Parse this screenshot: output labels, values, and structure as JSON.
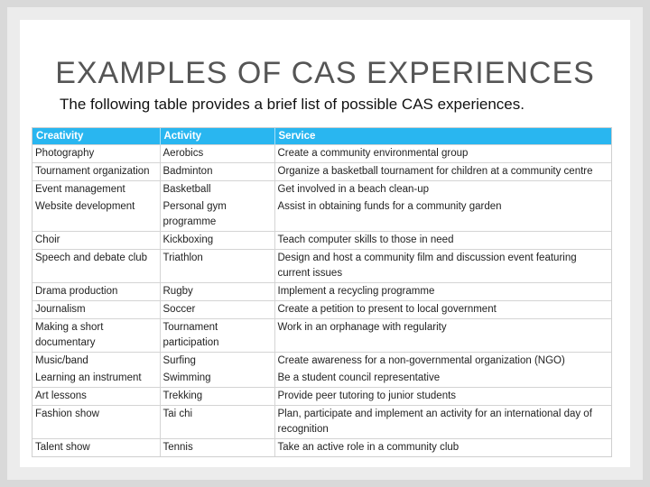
{
  "slide": {
    "title": "EXAMPLES OF CAS EXPERIENCES",
    "subtitle": "The following table provides a brief list of possible CAS experiences."
  },
  "table": {
    "headers": [
      "Creativity",
      "Activity",
      "Service"
    ],
    "rows": [
      {
        "cells": [
          "Photography",
          "Aerobics",
          "Create a community environmental group"
        ],
        "line": true
      },
      {
        "cells": [
          "Tournament organization",
          "Badminton",
          "Organize a basketball tournament for children at a community centre"
        ],
        "line": true
      },
      {
        "cells": [
          "Event management",
          "Basketball",
          "Get involved in a beach clean-up"
        ],
        "line": true
      },
      {
        "cells": [
          "Website development",
          "Personal gym programme",
          "Assist in obtaining funds for a community garden"
        ],
        "line": false
      },
      {
        "cells": [
          "Choir",
          "Kickboxing",
          "Teach computer skills to those in need"
        ],
        "line": true
      },
      {
        "cells": [
          "Speech and debate club",
          "Triathlon",
          "Design and host a community film and discussion event featuring current issues"
        ],
        "line": true
      },
      {
        "cells": [
          "Drama production",
          "Rugby",
          "Implement a recycling programme"
        ],
        "line": true
      },
      {
        "cells": [
          "Journalism",
          "Soccer",
          "Create a petition to present to local government"
        ],
        "line": true
      },
      {
        "cells": [
          "Making a short documentary",
          "Tournament participation",
          "Work in an orphanage with regularity"
        ],
        "line": true
      },
      {
        "cells": [
          "Music/band",
          "Surfing",
          "Create awareness for a non-governmental organization (NGO)"
        ],
        "line": true
      },
      {
        "cells": [
          "Learning an instrument",
          "Swimming",
          "Be a student council representative"
        ],
        "line": false
      },
      {
        "cells": [
          "Art lessons",
          "Trekking",
          "Provide peer tutoring to junior students"
        ],
        "line": true
      },
      {
        "cells": [
          "Fashion show",
          "Tai chi",
          "Plan, participate and implement an activity for an international day of recognition"
        ],
        "line": true
      },
      {
        "cells": [
          "Talent show",
          "Tennis",
          "Take an active role in a community club"
        ],
        "line": true
      }
    ]
  }
}
